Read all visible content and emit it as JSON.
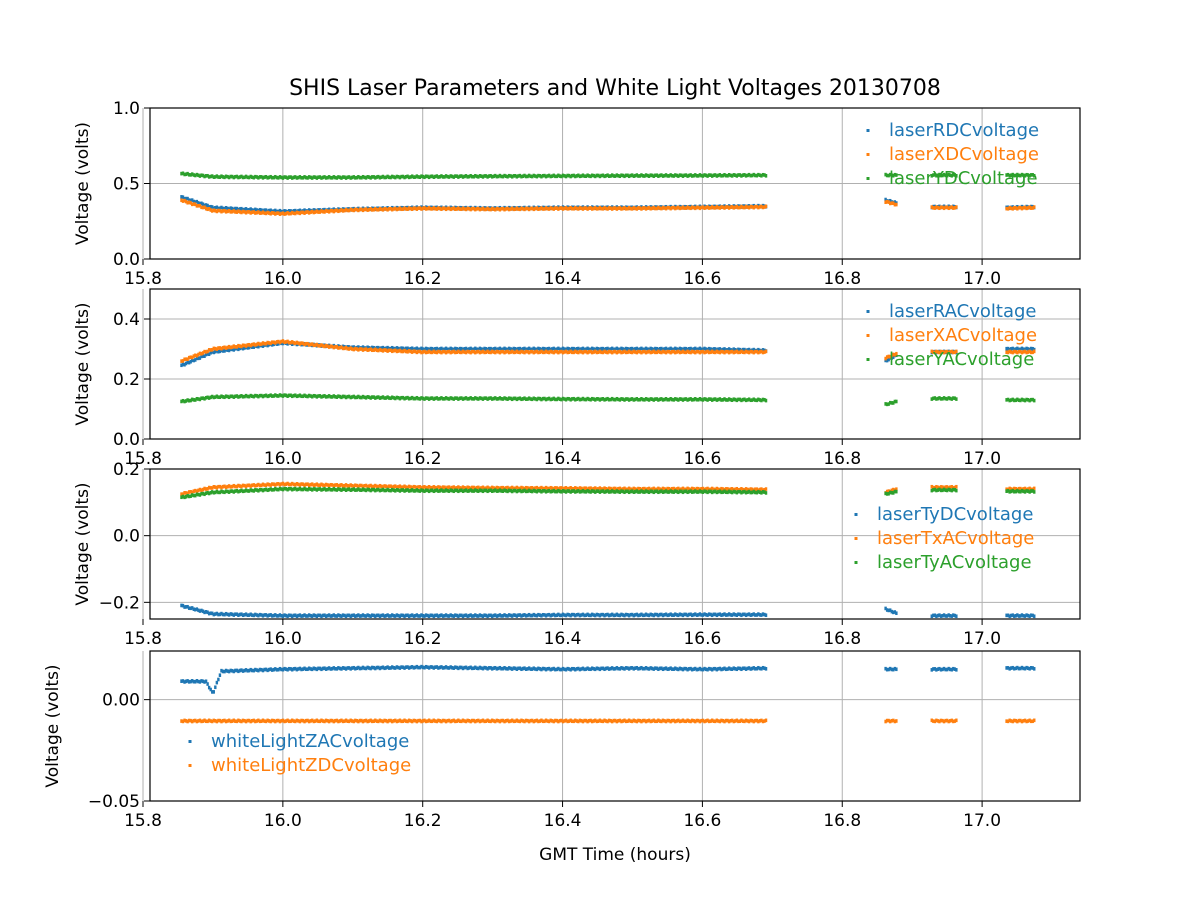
{
  "chart_data": {
    "type": "scatter",
    "title": "SHIS Laser Parameters and White Light Voltages 20130708",
    "xlabel": "GMT Time (hours)",
    "xlim": [
      15.81,
      17.14
    ],
    "xticks": [
      15.8,
      16.0,
      16.2,
      16.4,
      16.6,
      16.8,
      17.0
    ],
    "xtick_labels": [
      "15.8",
      "16.0",
      "16.2",
      "16.4",
      "16.6",
      "16.8",
      "17.0"
    ],
    "data_segments": [
      [
        15.855,
        16.693
      ],
      [
        16.862,
        16.878
      ],
      [
        16.928,
        16.965
      ],
      [
        17.035,
        17.075
      ]
    ],
    "grid": true,
    "panels": [
      {
        "ylabel": "Voltage (volts)",
        "ylim": [
          0,
          1
        ],
        "yticks": [
          0,
          0.5,
          1.0
        ],
        "ytick_labels": [
          "0.0",
          "0.5",
          "1.0"
        ],
        "legend_position": "upper right",
        "series": [
          {
            "name": "laserRDCvoltage",
            "color": "#1f77b4",
            "points": [
              [
                15.855,
                0.41
              ],
              [
                15.9,
                0.34
              ],
              [
                16.0,
                0.315
              ],
              [
                16.1,
                0.33
              ],
              [
                16.2,
                0.34
              ],
              [
                16.3,
                0.335
              ],
              [
                16.4,
                0.34
              ],
              [
                16.5,
                0.34
              ],
              [
                16.6,
                0.345
              ],
              [
                16.693,
                0.35
              ],
              [
                16.862,
                0.39
              ],
              [
                16.878,
                0.37
              ],
              [
                16.928,
                0.345
              ],
              [
                16.965,
                0.345
              ],
              [
                17.035,
                0.34
              ],
              [
                17.075,
                0.345
              ]
            ]
          },
          {
            "name": "laserXDCvoltage",
            "color": "#ff7f0e",
            "points": [
              [
                15.855,
                0.39
              ],
              [
                15.9,
                0.32
              ],
              [
                16.0,
                0.3
              ],
              [
                16.1,
                0.325
              ],
              [
                16.2,
                0.335
              ],
              [
                16.3,
                0.33
              ],
              [
                16.4,
                0.335
              ],
              [
                16.5,
                0.335
              ],
              [
                16.6,
                0.34
              ],
              [
                16.693,
                0.345
              ],
              [
                16.862,
                0.38
              ],
              [
                16.878,
                0.36
              ],
              [
                16.928,
                0.34
              ],
              [
                16.965,
                0.34
              ],
              [
                17.035,
                0.335
              ],
              [
                17.075,
                0.34
              ]
            ]
          },
          {
            "name": "laserYDCvoltage",
            "color": "#2ca02c",
            "points": [
              [
                15.855,
                0.565
              ],
              [
                15.9,
                0.545
              ],
              [
                16.0,
                0.54
              ],
              [
                16.1,
                0.54
              ],
              [
                16.2,
                0.545
              ],
              [
                16.3,
                0.548
              ],
              [
                16.4,
                0.55
              ],
              [
                16.5,
                0.552
              ],
              [
                16.6,
                0.553
              ],
              [
                16.693,
                0.555
              ],
              [
                16.862,
                0.555
              ],
              [
                16.878,
                0.555
              ],
              [
                16.928,
                0.555
              ],
              [
                16.965,
                0.555
              ],
              [
                17.035,
                0.555
              ],
              [
                17.075,
                0.555
              ]
            ]
          }
        ]
      },
      {
        "ylabel": "Voltage (volts)",
        "ylim": [
          0,
          0.5
        ],
        "yticks": [
          0,
          0.2,
          0.4
        ],
        "ytick_labels": [
          "0.0",
          "0.2",
          "0.4"
        ],
        "legend_position": "upper right",
        "series": [
          {
            "name": "laserRACvoltage",
            "color": "#1f77b4",
            "points": [
              [
                15.855,
                0.245
              ],
              [
                15.9,
                0.29
              ],
              [
                16.0,
                0.32
              ],
              [
                16.1,
                0.305
              ],
              [
                16.2,
                0.3
              ],
              [
                16.3,
                0.3
              ],
              [
                16.4,
                0.3
              ],
              [
                16.5,
                0.3
              ],
              [
                16.6,
                0.3
              ],
              [
                16.693,
                0.295
              ],
              [
                16.862,
                0.26
              ],
              [
                16.878,
                0.28
              ],
              [
                16.928,
                0.29
              ],
              [
                16.965,
                0.29
              ],
              [
                17.035,
                0.3
              ],
              [
                17.075,
                0.3
              ]
            ]
          },
          {
            "name": "laserXACvoltage",
            "color": "#ff7f0e",
            "points": [
              [
                15.855,
                0.26
              ],
              [
                15.9,
                0.3
              ],
              [
                16.0,
                0.325
              ],
              [
                16.1,
                0.3
              ],
              [
                16.2,
                0.29
              ],
              [
                16.3,
                0.29
              ],
              [
                16.4,
                0.29
              ],
              [
                16.5,
                0.29
              ],
              [
                16.6,
                0.29
              ],
              [
                16.693,
                0.29
              ],
              [
                16.862,
                0.27
              ],
              [
                16.878,
                0.285
              ],
              [
                16.928,
                0.29
              ],
              [
                16.965,
                0.29
              ],
              [
                17.035,
                0.29
              ],
              [
                17.075,
                0.29
              ]
            ]
          },
          {
            "name": "laserYACvoltage",
            "color": "#2ca02c",
            "points": [
              [
                15.855,
                0.125
              ],
              [
                15.9,
                0.14
              ],
              [
                16.0,
                0.145
              ],
              [
                16.1,
                0.14
              ],
              [
                16.2,
                0.135
              ],
              [
                16.3,
                0.135
              ],
              [
                16.4,
                0.133
              ],
              [
                16.5,
                0.132
              ],
              [
                16.6,
                0.132
              ],
              [
                16.693,
                0.13
              ],
              [
                16.862,
                0.115
              ],
              [
                16.878,
                0.125
              ],
              [
                16.928,
                0.135
              ],
              [
                16.965,
                0.135
              ],
              [
                17.035,
                0.13
              ],
              [
                17.075,
                0.13
              ]
            ]
          }
        ]
      },
      {
        "ylabel": "Voltage (volts)",
        "ylim": [
          -0.25,
          0.2
        ],
        "yticks": [
          -0.2,
          0.0,
          0.2
        ],
        "ytick_labels": [
          "−0.2",
          "0.0",
          "0.2"
        ],
        "legend_position": "center right",
        "series": [
          {
            "name": "laserTyDCvoltage",
            "color": "#1f77b4",
            "points": [
              [
                15.855,
                -0.21
              ],
              [
                15.9,
                -0.235
              ],
              [
                16.0,
                -0.24
              ],
              [
                16.1,
                -0.24
              ],
              [
                16.2,
                -0.24
              ],
              [
                16.3,
                -0.24
              ],
              [
                16.4,
                -0.238
              ],
              [
                16.5,
                -0.238
              ],
              [
                16.6,
                -0.237
              ],
              [
                16.693,
                -0.237
              ],
              [
                16.862,
                -0.22
              ],
              [
                16.878,
                -0.233
              ],
              [
                16.928,
                -0.24
              ],
              [
                16.965,
                -0.24
              ],
              [
                17.035,
                -0.24
              ],
              [
                17.075,
                -0.24
              ]
            ]
          },
          {
            "name": "laserTxACvoltage",
            "color": "#ff7f0e",
            "points": [
              [
                15.855,
                0.125
              ],
              [
                15.9,
                0.145
              ],
              [
                16.0,
                0.155
              ],
              [
                16.1,
                0.15
              ],
              [
                16.2,
                0.145
              ],
              [
                16.3,
                0.143
              ],
              [
                16.4,
                0.142
              ],
              [
                16.5,
                0.14
              ],
              [
                16.6,
                0.14
              ],
              [
                16.693,
                0.138
              ],
              [
                16.862,
                0.13
              ],
              [
                16.878,
                0.14
              ],
              [
                16.928,
                0.145
              ],
              [
                16.965,
                0.145
              ],
              [
                17.035,
                0.14
              ],
              [
                17.075,
                0.14
              ]
            ]
          },
          {
            "name": "laserTyACvoltage",
            "color": "#2ca02c",
            "points": [
              [
                15.855,
                0.115
              ],
              [
                15.9,
                0.13
              ],
              [
                16.0,
                0.14
              ],
              [
                16.1,
                0.138
              ],
              [
                16.2,
                0.135
              ],
              [
                16.3,
                0.135
              ],
              [
                16.4,
                0.133
              ],
              [
                16.5,
                0.132
              ],
              [
                16.6,
                0.132
              ],
              [
                16.693,
                0.13
              ],
              [
                16.862,
                0.125
              ],
              [
                16.878,
                0.132
              ],
              [
                16.928,
                0.137
              ],
              [
                16.965,
                0.137
              ],
              [
                17.035,
                0.133
              ],
              [
                17.075,
                0.133
              ]
            ]
          }
        ]
      },
      {
        "ylabel": "Voltage (volts)",
        "ylim": [
          -0.05,
          0.024
        ],
        "yticks": [
          -0.05,
          0.0
        ],
        "ytick_labels": [
          "−0.05",
          "0.00"
        ],
        "legend_position": "lower left",
        "series": [
          {
            "name": "whiteLightZACvoltage",
            "color": "#1f77b4",
            "points": [
              [
                15.855,
                0.009
              ],
              [
                15.89,
                0.009
              ],
              [
                15.9,
                0.003
              ],
              [
                15.912,
                0.014
              ],
              [
                16.0,
                0.015
              ],
              [
                16.1,
                0.0155
              ],
              [
                16.2,
                0.016
              ],
              [
                16.3,
                0.0155
              ],
              [
                16.4,
                0.015
              ],
              [
                16.5,
                0.0155
              ],
              [
                16.6,
                0.015
              ],
              [
                16.693,
                0.0155
              ],
              [
                16.862,
                0.015
              ],
              [
                16.878,
                0.015
              ],
              [
                16.928,
                0.015
              ],
              [
                16.965,
                0.015
              ],
              [
                17.035,
                0.0155
              ],
              [
                17.075,
                0.0155
              ]
            ]
          },
          {
            "name": "whiteLightZDCvoltage",
            "color": "#ff7f0e",
            "points": [
              [
                15.855,
                -0.0105
              ],
              [
                16.0,
                -0.0105
              ],
              [
                16.2,
                -0.0105
              ],
              [
                16.4,
                -0.0105
              ],
              [
                16.6,
                -0.0105
              ],
              [
                16.693,
                -0.0105
              ],
              [
                16.862,
                -0.0105
              ],
              [
                16.878,
                -0.0105
              ],
              [
                16.928,
                -0.0105
              ],
              [
                16.965,
                -0.0105
              ],
              [
                17.035,
                -0.0105
              ],
              [
                17.075,
                -0.0105
              ]
            ]
          }
        ]
      }
    ]
  }
}
